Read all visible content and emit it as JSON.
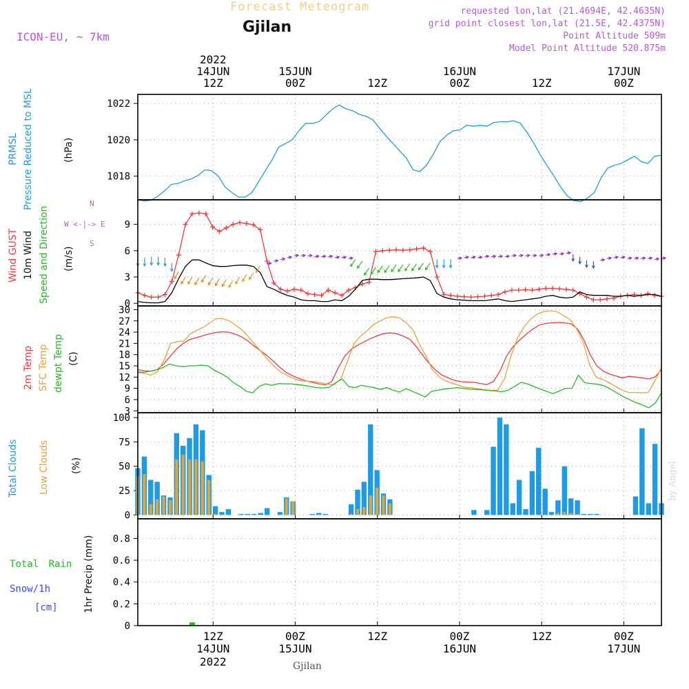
{
  "header": {
    "title": "Forecast Meteogram",
    "location": "Gjilan",
    "model": "ICON-EU, ~ 7km",
    "requested": "requested lon,lat (21.4694E, 42.4635N)",
    "gridpoint": "grid point closest lon,lat (21.5E, 42.4375N)",
    "point_alt": "Point Altitude 509m",
    "model_alt": "Model Point Altitude 520.875m",
    "footer_location": "Gjilan",
    "credit": "by Angel"
  },
  "time_axis": {
    "top_labels": [
      {
        "day": "14JUN",
        "hour": "12Z",
        "year": "2022",
        "t": 12
      },
      {
        "day": "15JUN",
        "hour": "00Z",
        "t": 24
      },
      {
        "hour": "12Z",
        "t": 36
      },
      {
        "day": "16JUN",
        "hour": "00Z",
        "t": 48
      },
      {
        "hour": "12Z",
        "t": 60
      },
      {
        "day": "17JUN",
        "hour": "00Z",
        "t": 72
      }
    ],
    "bottom_labels": [
      {
        "hour": "12Z",
        "day": "14JUN",
        "year": "2022",
        "t": 12
      },
      {
        "hour": "00Z",
        "day": "15JUN",
        "t": 24
      },
      {
        "hour": "12Z",
        "t": 36
      },
      {
        "hour": "00Z",
        "day": "16JUN",
        "t": 48
      },
      {
        "hour": "12Z",
        "t": 60
      },
      {
        "hour": "00Z",
        "day": "17JUN",
        "t": 72
      }
    ],
    "range_hours": [
      1,
      77.5
    ]
  },
  "chart_data": [
    {
      "type": "line",
      "panel": "pressure",
      "ylabel_lines": [
        "PRMSL",
        "Pressure Reduced to MSL"
      ],
      "unit": "(hPa)",
      "ylim": [
        1016.7,
        1022.5
      ],
      "yticks": [
        1018,
        1020,
        1022
      ],
      "series": [
        {
          "name": "PRMSL",
          "color": "#1e9be3",
          "values": [
            1016.7,
            1016.63,
            1016.68,
            1016.9,
            1017.2,
            1017.55,
            1017.6,
            1017.75,
            1017.85,
            1018.05,
            1018.35,
            1018.3,
            1018.0,
            1017.4,
            1017.1,
            1016.85,
            1016.85,
            1017.1,
            1017.7,
            1018.3,
            1018.9,
            1019.6,
            1019.8,
            1020.0,
            1020.5,
            1020.9,
            1020.9,
            1021.0,
            1021.35,
            1021.7,
            1021.92,
            1021.7,
            1021.6,
            1021.4,
            1021.3,
            1021.1,
            1020.65,
            1020.2,
            1019.8,
            1019.4,
            1019.0,
            1018.35,
            1018.25,
            1018.6,
            1019.2,
            1019.9,
            1020.25,
            1020.5,
            1020.55,
            1020.8,
            1020.75,
            1020.8,
            1020.75,
            1020.95,
            1021.0,
            1021.0,
            1021.05,
            1020.9,
            1020.4,
            1019.8,
            1019.15,
            1018.55,
            1018.0,
            1017.4,
            1016.9,
            1016.65,
            1016.6,
            1016.8,
            1017.1,
            1017.9,
            1018.45,
            1018.6,
            1018.7,
            1018.9,
            1019.1,
            1018.8,
            1018.7,
            1019.1,
            1019.15
          ]
        }
      ]
    },
    {
      "type": "line",
      "panel": "wind",
      "ylabel_lines": [
        "Wind GUST",
        "10m Wind",
        "Speed and Direction"
      ],
      "unit": "(m/s)",
      "compass": [
        "N",
        "W <-|-> E",
        "S"
      ],
      "ylim": [
        -0.3,
        11.8
      ],
      "yticks": [
        0,
        3,
        6,
        9
      ],
      "series": [
        {
          "name": "Wind GUST",
          "color": "#ee3a3a",
          "values": [
            1.2,
            0.9,
            0.7,
            0.7,
            1.0,
            2.5,
            5.5,
            9.0,
            10.2,
            10.3,
            10.2,
            8.7,
            8.2,
            8.6,
            9.0,
            9.2,
            9.1,
            8.95,
            8.4,
            4.8,
            2.3,
            1.6,
            1.4,
            1.6,
            1.5,
            1.1,
            1.0,
            0.9,
            1.5,
            1.2,
            0.9,
            1.5,
            1.8,
            2.2,
            2.4,
            5.9,
            6.0,
            6.05,
            6.1,
            6.05,
            6.1,
            6.2,
            6.3,
            5.9,
            3.0,
            1.0,
            0.9,
            0.8,
            0.75,
            0.7,
            0.75,
            0.8,
            0.9,
            1.0,
            1.3,
            1.5,
            1.5,
            1.55,
            1.5,
            1.6,
            1.7,
            1.7,
            1.65,
            1.6,
            1.5,
            1.1,
            0.7,
            0.4,
            0.4,
            0.5,
            0.6,
            0.8,
            0.9,
            1.0,
            0.9,
            1.1,
            0.9,
            0.8
          ]
        },
        {
          "name": "10m Wind",
          "color": "#000000",
          "values": [
            0.2,
            0.1,
            0.05,
            0.05,
            0.2,
            1.2,
            2.8,
            4.2,
            4.95,
            4.95,
            4.6,
            4.3,
            4.2,
            4.2,
            4.3,
            4.35,
            4.35,
            4.2,
            3.5,
            1.9,
            1.6,
            1.2,
            0.9,
            0.7,
            0.4,
            0.3,
            0.3,
            0.2,
            0.2,
            0.4,
            0.3,
            0.8,
            1.6,
            2.6,
            2.75,
            2.75,
            2.7,
            2.7,
            2.75,
            2.8,
            2.85,
            2.9,
            3.0,
            2.6,
            1.1,
            0.7,
            0.5,
            0.4,
            0.35,
            0.3,
            0.3,
            0.3,
            0.4,
            0.5,
            0.3,
            0.2,
            0.3,
            0.4,
            0.5,
            0.6,
            0.8,
            0.9,
            0.7,
            0.6,
            0.7,
            1.3,
            1.0,
            0.9,
            0.9,
            0.9,
            0.8,
            0.8,
            0.9,
            0.8,
            0.9,
            1.0,
            1.0,
            0.8
          ]
        },
        {
          "name": "Wind Arrows",
          "values": [
            5.2,
            5.2,
            5.3,
            5.3,
            5.2,
            4.6,
            3.6,
            3.0,
            3.0,
            2.9,
            3.2,
            2.9,
            2.8,
            2.7,
            2.6,
            3.0,
            3.3,
            3.5,
            4.3,
            4.5,
            4.8,
            5.0,
            5.2,
            5.4,
            5.4,
            5.4,
            5.3,
            5.3,
            5.3,
            5.2,
            5.2,
            5.1,
            5.0,
            4.8,
            4.0,
            4.1,
            4.3,
            4.3,
            4.4,
            4.4,
            4.5,
            4.5,
            4.6,
            4.6,
            5.0,
            5.0,
            5.0,
            5.1,
            5.2,
            5.2,
            5.2,
            5.3,
            5.3,
            5.3,
            5.3,
            5.4,
            5.4,
            5.4,
            5.4,
            5.4,
            5.5,
            5.6,
            5.6,
            5.7,
            5.6,
            5.3,
            4.9,
            4.8,
            4.9,
            5.1,
            5.2,
            5.2,
            5.1,
            5.1,
            5.1,
            5.1,
            5.0,
            5.1
          ]
        }
      ]
    },
    {
      "type": "line",
      "panel": "temperature",
      "ylabel_lines": [
        "2m Temp",
        "SFC Temp",
        "dewpt Temp"
      ],
      "unit": "(C)",
      "ylim": [
        2.5,
        31
      ],
      "yticks": [
        3,
        6,
        9,
        12,
        15,
        18,
        21,
        24,
        27,
        30
      ],
      "series": [
        {
          "name": "2m Temp",
          "color": "#ee3a3a",
          "values": [
            14.0,
            13.7,
            13.6,
            14.0,
            15.5,
            17.5,
            19.5,
            21.0,
            22.0,
            22.5,
            23.0,
            23.5,
            23.9,
            24.1,
            24.0,
            23.5,
            22.8,
            21.7,
            20.3,
            19.0,
            17.7,
            16.2,
            14.6,
            13.2,
            12.3,
            11.6,
            11.0,
            10.6,
            10.2,
            9.95,
            10.8,
            14.5,
            17.5,
            19.4,
            20.5,
            21.4,
            22.3,
            23.0,
            23.6,
            23.8,
            23.6,
            23.0,
            22.2,
            20.3,
            18.0,
            15.8,
            14.0,
            12.6,
            11.8,
            11.1,
            10.8,
            10.7,
            10.6,
            10.3,
            10.0,
            10.8,
            13.5,
            17.5,
            20.0,
            21.8,
            23.3,
            24.7,
            25.8,
            26.3,
            26.5,
            26.6,
            26.5,
            26.2,
            24.9,
            22.0,
            17.9,
            15.0,
            13.6,
            12.8,
            12.3,
            11.8,
            12.2,
            12.0,
            11.8,
            11.5,
            12.0,
            14.0
          ]
        },
        {
          "name": "SFC Temp",
          "color": "#e3a43a",
          "values": [
            13.2,
            13.0,
            12.5,
            13.4,
            16.5,
            21.0,
            21.5,
            21.6,
            23.5,
            24.5,
            25.3,
            26.5,
            27.6,
            27.6,
            27.0,
            25.8,
            24.5,
            22.6,
            20.5,
            18.5,
            16.4,
            14.6,
            13.2,
            12.3,
            11.5,
            11.0,
            10.9,
            10.8,
            10.5,
            10.1,
            10.0,
            11.5,
            16.0,
            20.8,
            22.9,
            24.3,
            26.0,
            27.0,
            27.8,
            28.1,
            27.8,
            26.5,
            24.7,
            20.9,
            17.7,
            14.0,
            12.1,
            11.0,
            10.4,
            9.8,
            9.3,
            9.2,
            8.9,
            8.6,
            8.5,
            8.5,
            11.5,
            17.5,
            22.4,
            25.4,
            27.5,
            28.8,
            29.5,
            29.7,
            29.5,
            28.5,
            27.4,
            25.0,
            21.5,
            15.5,
            12.0,
            11.4,
            10.5,
            9.5,
            8.5,
            7.9,
            7.9,
            7.8,
            7.9,
            11.0,
            14.5
          ]
        },
        {
          "name": "dewpt Temp",
          "color": "#22bb22",
          "values": [
            13.4,
            13.3,
            13.6,
            14.0,
            14.6,
            15.5,
            15.0,
            14.8,
            15.0,
            15.0,
            15.2,
            15.0,
            13.8,
            13.0,
            12.0,
            10.5,
            9.5,
            8.2,
            7.8,
            9.5,
            10.2,
            9.8,
            10.3,
            10.2,
            10.2,
            10.0,
            9.8,
            9.5,
            9.2,
            9.1,
            9.3,
            10.5,
            11.5,
            9.5,
            9.2,
            9.8,
            9.5,
            9.2,
            8.7,
            9.2,
            8.5,
            8.0,
            8.9,
            8.2,
            7.5,
            6.7,
            8.2,
            8.5,
            8.8,
            9.0,
            9.2,
            9.0,
            8.8,
            8.7,
            8.6,
            8.4,
            8.3,
            8.1,
            8.5,
            9.5,
            10.6,
            10.2,
            9.5,
            8.8,
            8.2,
            7.6,
            8.3,
            9.0,
            9.0,
            12.5,
            10.5,
            10.3,
            10.1,
            9.7,
            8.8,
            7.8,
            6.8,
            6.0,
            5.2,
            4.6,
            3.8,
            5.0,
            7.8
          ]
        }
      ]
    },
    {
      "type": "bar",
      "panel": "clouds",
      "ylabel_lines": [
        "Total Clouds",
        "Low Clouds"
      ],
      "unit": "(%)",
      "ylim": [
        -4,
        105
      ],
      "yticks": [
        0,
        25,
        50,
        75,
        100
      ],
      "series": [
        {
          "name": "Total Clouds",
          "color": "#1e9be3",
          "values": [
            48,
            60,
            36,
            34,
            20,
            18,
            84,
            71,
            79,
            93,
            87,
            41,
            9,
            3,
            6,
            0,
            1,
            1,
            1,
            2,
            7,
            0,
            3,
            18,
            14,
            0,
            0,
            1,
            2,
            1,
            0,
            0,
            0,
            11,
            26,
            34,
            93,
            46,
            22,
            16,
            0,
            0,
            0,
            0,
            0,
            0,
            0,
            0,
            0,
            0,
            0,
            0,
            5,
            0,
            5,
            70,
            100,
            93,
            12,
            36,
            6,
            45,
            69,
            27,
            3,
            15,
            50,
            17,
            15,
            1,
            1,
            1,
            0,
            0,
            0,
            0,
            0,
            19,
            89,
            12,
            73,
            12
          ]
        },
        {
          "name": "Low Clouds",
          "color": "#e3a43a",
          "values": [
            40,
            42,
            11,
            16,
            19,
            15,
            57,
            62,
            57,
            57,
            55,
            36,
            1,
            0,
            0,
            0,
            0,
            0,
            0,
            0,
            0,
            0,
            0,
            17,
            14,
            0,
            0,
            0,
            0,
            0,
            0,
            0,
            0,
            1,
            6,
            8,
            20,
            28,
            20,
            12,
            0,
            0,
            0,
            0,
            0,
            0,
            0,
            0,
            0,
            0,
            0,
            0,
            0,
            0,
            0,
            0,
            0,
            0,
            0,
            0,
            0,
            0,
            0,
            0,
            0,
            2,
            3,
            2,
            1,
            0,
            0,
            0,
            0,
            0,
            0,
            0,
            0,
            0,
            0,
            0,
            0,
            0
          ]
        }
      ]
    },
    {
      "type": "bar",
      "panel": "precip",
      "ylabel_lines": [
        "Total Rain",
        "Snow/1h",
        "[cm]"
      ],
      "unit": "1hr Precip (mm)",
      "ylim": [
        0,
        0.98
      ],
      "yticks": [
        0,
        0.2,
        0.4,
        0.6,
        0.8
      ],
      "series": [
        {
          "name": "Total Rain",
          "color": "#22bb22",
          "values": [
            0,
            0,
            0,
            0,
            0,
            0,
            0,
            0,
            0.03,
            0,
            0,
            0,
            0,
            0,
            0,
            0,
            0,
            0,
            0,
            0,
            0,
            0,
            0,
            0,
            0,
            0,
            0,
            0,
            0,
            0,
            0,
            0,
            0,
            0,
            0,
            0,
            0,
            0,
            0,
            0,
            0,
            0,
            0,
            0,
            0,
            0,
            0,
            0,
            0,
            0,
            0,
            0,
            0,
            0,
            0,
            0,
            0,
            0,
            0,
            0,
            0,
            0,
            0,
            0,
            0,
            0,
            0,
            0,
            0,
            0,
            0,
            0,
            0,
            0,
            0,
            0,
            0,
            0
          ]
        }
      ]
    }
  ]
}
